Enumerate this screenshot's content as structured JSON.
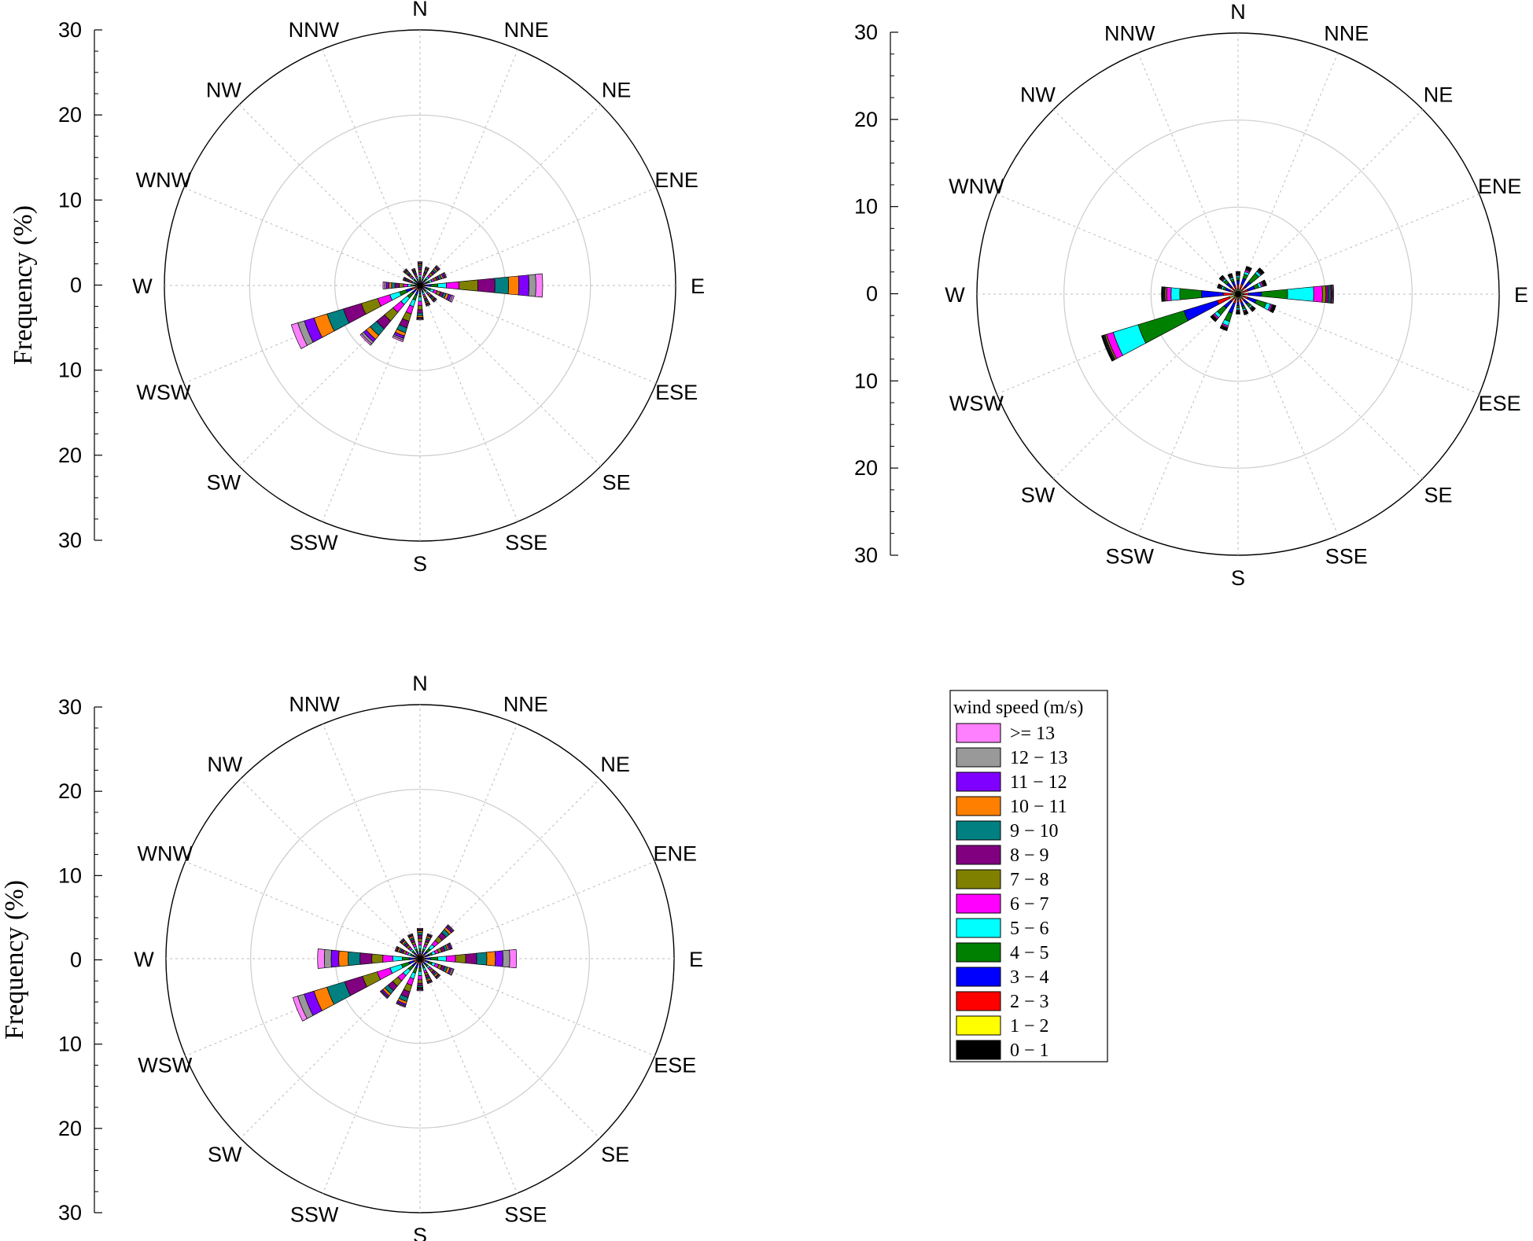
{
  "directions": [
    "N",
    "NNE",
    "NE",
    "ENE",
    "E",
    "ESE",
    "SE",
    "SSE",
    "S",
    "SSW",
    "SW",
    "WSW",
    "W",
    "WNW",
    "NW",
    "NNW"
  ],
  "colors": [
    "#000000",
    "#ffff00",
    "#ff0000",
    "#0000ff",
    "#008000",
    "#00ffff",
    "#ff00ff",
    "#808000",
    "#800080",
    "#008080",
    "#ff8000",
    "#8000ff",
    "#999999",
    "#ff80ff"
  ],
  "legend": {
    "title": "wind speed (m/s)",
    "items": [
      ">= 13",
      "12 − 13",
      "11 − 12",
      "10 − 11",
      "9 − 10",
      "8 − 9",
      "7 − 8",
      "6 − 7",
      "5 − 6",
      "4 − 5",
      "3 − 4",
      "2 − 3",
      "1 − 2",
      "0 − 1"
    ]
  },
  "chart_data": [
    {
      "type": "windrose",
      "ylabel": "Frequency (%)",
      "rmax": 30,
      "ticks": [
        30,
        20,
        10,
        0,
        10,
        20,
        30
      ],
      "rings": [
        10,
        20,
        30
      ],
      "directions": [
        "N",
        "NNE",
        "NE",
        "ENE",
        "E",
        "ESE",
        "SE",
        "SSE",
        "S",
        "SSW",
        "SW",
        "WSW",
        "W",
        "WNW",
        "NW",
        "NNW"
      ],
      "bins": [
        "0-1",
        "1-2",
        "2-3",
        "3-4",
        "4-5",
        "5-6",
        "6-7",
        "7-8",
        "8-9",
        "9-10",
        "10-11",
        "11-12",
        "12-13",
        ">=13"
      ],
      "values": [
        [
          0.15,
          0.15,
          0.2,
          0.2,
          0.25,
          0.3,
          0.3,
          0.3,
          0.3,
          0.2,
          0.15,
          0.1,
          0.1,
          0.1
        ],
        [
          0.15,
          0.1,
          0.15,
          0.2,
          0.2,
          0.2,
          0.25,
          0.2,
          0.2,
          0.2,
          0.15,
          0.1,
          0.1,
          0.1
        ],
        [
          0.15,
          0.15,
          0.2,
          0.25,
          0.3,
          0.3,
          0.3,
          0.3,
          0.3,
          0.25,
          0.2,
          0.15,
          0.1,
          0.1
        ],
        [
          0.2,
          0.2,
          0.2,
          0.25,
          0.3,
          0.3,
          0.3,
          0.3,
          0.3,
          0.3,
          0.2,
          0.2,
          0.1,
          0.1
        ],
        [
          0.2,
          0.2,
          0.3,
          0.6,
          0.8,
          1.0,
          1.5,
          2.2,
          2.0,
          1.6,
          1.2,
          1.2,
          0.8,
          0.8
        ],
        [
          0.2,
          0.2,
          0.2,
          0.3,
          0.4,
          0.4,
          0.4,
          0.4,
          0.4,
          0.3,
          0.3,
          0.3,
          0.2,
          0.2
        ],
        [
          0.15,
          0.15,
          0.2,
          0.2,
          0.25,
          0.25,
          0.25,
          0.25,
          0.2,
          0.2,
          0.15,
          0.1,
          0.1,
          0.1
        ],
        [
          0.15,
          0.15,
          0.2,
          0.2,
          0.2,
          0.25,
          0.25,
          0.25,
          0.25,
          0.2,
          0.15,
          0.1,
          0.1,
          0.1
        ],
        [
          0.2,
          0.2,
          0.25,
          0.3,
          0.4,
          0.5,
          0.5,
          0.5,
          0.4,
          0.3,
          0.2,
          0.1,
          0.1,
          0.1
        ],
        [
          0.2,
          0.2,
          0.3,
          0.5,
          0.6,
          0.8,
          0.9,
          0.9,
          0.8,
          0.6,
          0.4,
          0.3,
          0.2,
          0.2
        ],
        [
          0.2,
          0.2,
          0.3,
          0.5,
          0.7,
          1.0,
          1.2,
          1.3,
          1.2,
          1.0,
          0.6,
          0.4,
          0.3,
          0.2
        ],
        [
          0.3,
          0.3,
          0.5,
          0.6,
          0.8,
          1.2,
          1.5,
          2.0,
          2.2,
          2.0,
          1.6,
          1.2,
          0.8,
          0.8
        ],
        [
          0.15,
          0.15,
          0.2,
          0.25,
          0.3,
          0.4,
          0.5,
          0.5,
          0.5,
          0.4,
          0.3,
          0.3,
          0.2,
          0.2
        ],
        [
          0.15,
          0.1,
          0.15,
          0.15,
          0.2,
          0.2,
          0.2,
          0.2,
          0.2,
          0.15,
          0.1,
          0.1,
          0.1,
          0.1
        ],
        [
          0.15,
          0.15,
          0.2,
          0.2,
          0.25,
          0.25,
          0.25,
          0.25,
          0.2,
          0.2,
          0.15,
          0.1,
          0.1,
          0.1
        ],
        [
          0.15,
          0.1,
          0.15,
          0.15,
          0.2,
          0.2,
          0.2,
          0.2,
          0.2,
          0.15,
          0.1,
          0.1,
          0.1,
          0.1
        ]
      ]
    },
    {
      "type": "windrose",
      "ylabel": "",
      "rmax": 30,
      "ticks": [
        30,
        20,
        10,
        0,
        10,
        20,
        30
      ],
      "rings": [
        10,
        20,
        30
      ],
      "directions": [
        "N",
        "NNE",
        "NE",
        "ENE",
        "E",
        "ESE",
        "SE",
        "SSE",
        "S",
        "SSW",
        "SW",
        "WSW",
        "W",
        "WNW",
        "NW",
        "NNW"
      ],
      "bins": [
        "0-1",
        "1-2",
        "2-3",
        "3-4",
        "4-5",
        "5-6",
        "6-7",
        "7-8",
        "8-9",
        "9-10",
        "10-11",
        "11-12",
        "12-13",
        ">=13"
      ],
      "values": [
        [
          0.3,
          0.3,
          0.5,
          0.5,
          0.3,
          0.2,
          0.1,
          0.1,
          0.05,
          0.05,
          0.05,
          0.05,
          0.05,
          0.05
        ],
        [
          0.3,
          0.3,
          0.6,
          0.7,
          0.5,
          0.3,
          0.2,
          0.1,
          0.1,
          0.05,
          0.05,
          0.05,
          0.05,
          0.05
        ],
        [
          0.3,
          0.3,
          0.5,
          0.8,
          1.2,
          0.3,
          0.1,
          0.1,
          0.05,
          0.05,
          0.05,
          0.05,
          0.05,
          0.05
        ],
        [
          0.3,
          0.3,
          0.6,
          0.8,
          0.5,
          0.3,
          0.2,
          0.1,
          0.1,
          0.05,
          0.05,
          0.05,
          0.05,
          0.05
        ],
        [
          0.3,
          0.3,
          0.6,
          1.5,
          3.0,
          3.0,
          1.0,
          0.4,
          0.3,
          0.2,
          0.1,
          0.1,
          0.1,
          0.1
        ],
        [
          0.3,
          0.3,
          0.6,
          1.0,
          1.2,
          0.5,
          0.2,
          0.1,
          0.1,
          0.05,
          0.05,
          0.05,
          0.05,
          0.05
        ],
        [
          0.3,
          0.3,
          0.4,
          0.5,
          0.4,
          0.2,
          0.1,
          0.1,
          0.05,
          0.05,
          0.05,
          0.05,
          0.05,
          0.05
        ],
        [
          0.3,
          0.3,
          0.4,
          0.5,
          0.3,
          0.2,
          0.1,
          0.1,
          0.05,
          0.05,
          0.05,
          0.05,
          0.05,
          0.05
        ],
        [
          0.3,
          0.3,
          0.3,
          0.4,
          0.3,
          0.2,
          0.1,
          0.1,
          0.05,
          0.05,
          0.05,
          0.05,
          0.05,
          0.05
        ],
        [
          0.3,
          0.3,
          0.5,
          1.2,
          1.0,
          0.5,
          0.2,
          0.1,
          0.05,
          0.05,
          0.05,
          0.05,
          0.05,
          0.05
        ],
        [
          0.3,
          0.3,
          0.5,
          1.0,
          1.0,
          0.4,
          0.2,
          0.1,
          0.05,
          0.05,
          0.05,
          0.05,
          0.05,
          0.05
        ],
        [
          0.4,
          0.6,
          1.5,
          4.0,
          5.5,
          3.0,
          0.8,
          0.2,
          0.1,
          0.1,
          0.05,
          0.05,
          0.05,
          0.05
        ],
        [
          0.3,
          0.4,
          1.0,
          2.5,
          2.5,
          1.0,
          0.5,
          0.2,
          0.1,
          0.1,
          0.05,
          0.05,
          0.05,
          0.05
        ],
        [
          0.3,
          0.3,
          0.4,
          0.5,
          0.3,
          0.2,
          0.1,
          0.1,
          0.05,
          0.05,
          0.05,
          0.05,
          0.05,
          0.05
        ],
        [
          0.3,
          0.3,
          0.5,
          0.6,
          0.4,
          0.2,
          0.1,
          0.1,
          0.05,
          0.05,
          0.05,
          0.05,
          0.05,
          0.05
        ],
        [
          0.3,
          0.3,
          0.4,
          0.5,
          0.3,
          0.2,
          0.1,
          0.1,
          0.05,
          0.05,
          0.05,
          0.05,
          0.05,
          0.05
        ]
      ]
    },
    {
      "type": "windrose",
      "ylabel": "Frequency (%)",
      "rmax": 30,
      "ticks": [
        30,
        20,
        10,
        0,
        10,
        20,
        30
      ],
      "rings": [
        10,
        20,
        30
      ],
      "directions": [
        "N",
        "NNE",
        "NE",
        "ENE",
        "E",
        "ESE",
        "SE",
        "SSE",
        "S",
        "SSW",
        "SW",
        "WSW",
        "W",
        "WNW",
        "NW",
        "NNW"
      ],
      "bins": [
        "0-1",
        "1-2",
        "2-3",
        "3-4",
        "4-5",
        "5-6",
        "6-7",
        "7-8",
        "8-9",
        "9-10",
        "10-11",
        "11-12",
        "12-13",
        ">=13"
      ],
      "values": [
        [
          0.2,
          0.2,
          0.2,
          0.3,
          0.3,
          0.4,
          0.4,
          0.4,
          0.4,
          0.3,
          0.2,
          0.1,
          0.1,
          0.1
        ],
        [
          0.2,
          0.2,
          0.2,
          0.3,
          0.3,
          0.3,
          0.3,
          0.3,
          0.3,
          0.2,
          0.2,
          0.1,
          0.1,
          0.1
        ],
        [
          0.2,
          0.2,
          0.3,
          0.4,
          0.5,
          0.6,
          0.6,
          0.6,
          0.6,
          0.5,
          0.3,
          0.2,
          0.1,
          0.1
        ],
        [
          0.2,
          0.2,
          0.3,
          0.4,
          0.4,
          0.4,
          0.4,
          0.4,
          0.4,
          0.3,
          0.2,
          0.2,
          0.1,
          0.1
        ],
        [
          0.2,
          0.2,
          0.3,
          0.6,
          0.8,
          1.0,
          1.1,
          1.2,
          1.3,
          1.2,
          1.0,
          0.9,
          0.8,
          0.8
        ],
        [
          0.2,
          0.2,
          0.3,
          0.4,
          0.4,
          0.4,
          0.4,
          0.4,
          0.4,
          0.3,
          0.3,
          0.2,
          0.2,
          0.1
        ],
        [
          0.2,
          0.2,
          0.2,
          0.3,
          0.3,
          0.3,
          0.3,
          0.3,
          0.3,
          0.2,
          0.2,
          0.1,
          0.1,
          0.1
        ],
        [
          0.2,
          0.2,
          0.2,
          0.3,
          0.3,
          0.3,
          0.3,
          0.3,
          0.3,
          0.2,
          0.2,
          0.1,
          0.1,
          0.1
        ],
        [
          0.2,
          0.2,
          0.3,
          0.4,
          0.4,
          0.5,
          0.5,
          0.4,
          0.3,
          0.2,
          0.1,
          0.1,
          0.1,
          0.1
        ],
        [
          0.2,
          0.2,
          0.3,
          0.5,
          0.6,
          0.7,
          0.8,
          0.8,
          0.7,
          0.5,
          0.3,
          0.2,
          0.1,
          0.1
        ],
        [
          0.2,
          0.2,
          0.3,
          0.5,
          0.6,
          0.8,
          0.8,
          0.8,
          0.7,
          0.5,
          0.3,
          0.2,
          0.1,
          0.1
        ],
        [
          0.2,
          0.2,
          0.4,
          0.6,
          0.9,
          1.4,
          1.6,
          1.8,
          2.2,
          2.2,
          1.6,
          1.2,
          0.8,
          0.6
        ],
        [
          0.2,
          0.2,
          0.3,
          0.6,
          0.8,
          1.1,
          1.2,
          1.3,
          1.4,
          1.4,
          1.1,
          0.9,
          0.8,
          0.8
        ],
        [
          0.2,
          0.2,
          0.2,
          0.3,
          0.3,
          0.3,
          0.3,
          0.3,
          0.3,
          0.2,
          0.2,
          0.1,
          0.1,
          0.1
        ],
        [
          0.2,
          0.2,
          0.2,
          0.3,
          0.3,
          0.3,
          0.3,
          0.3,
          0.3,
          0.2,
          0.2,
          0.1,
          0.1,
          0.1
        ],
        [
          0.2,
          0.2,
          0.2,
          0.3,
          0.3,
          0.3,
          0.3,
          0.3,
          0.3,
          0.2,
          0.2,
          0.1,
          0.1,
          0.1
        ]
      ]
    }
  ]
}
